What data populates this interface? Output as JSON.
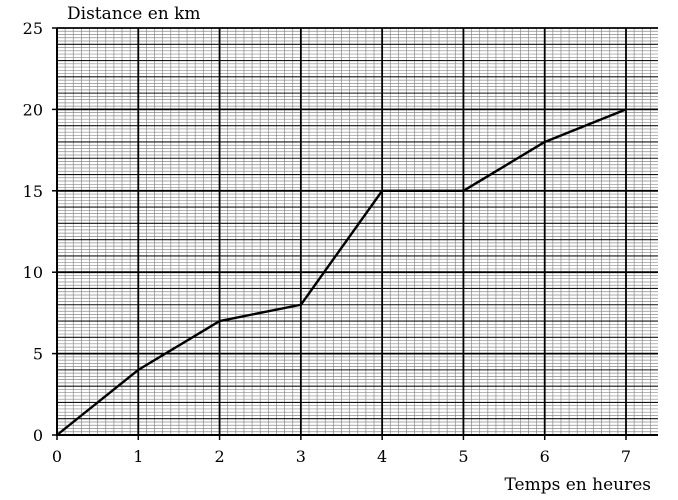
{
  "chart_data": {
    "type": "line",
    "ylabel": "Distance en km",
    "xlabel": "Temps en heures",
    "x_ticks": [
      "0",
      "1",
      "2",
      "3",
      "4",
      "5",
      "6",
      "7"
    ],
    "y_ticks": [
      "0",
      "5",
      "10",
      "15",
      "20",
      "25"
    ],
    "xlim": [
      0,
      7.4
    ],
    "ylim": [
      0,
      25
    ],
    "x_major": 1,
    "x_minor": 0.1,
    "y_major": 5,
    "y_mid": 1,
    "y_minor": 0.2,
    "grid": true,
    "line_color": "#000000",
    "series": [
      {
        "x": [
          0,
          1,
          2,
          3,
          4,
          5,
          6,
          7
        ],
        "y": [
          0,
          4,
          7,
          8,
          15,
          15,
          18,
          20
        ]
      }
    ]
  }
}
